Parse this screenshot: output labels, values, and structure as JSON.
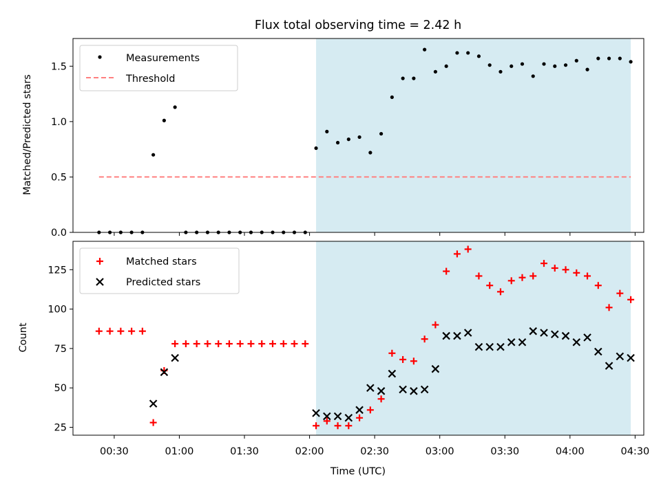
{
  "title": "Flux total observing time = 2.42 h",
  "colors": {
    "measurement": "#000000",
    "threshold": "#ff7f7f",
    "matched": "#ff0000",
    "predicted": "#000000",
    "shade": "#add8e6"
  },
  "chart_data": [
    {
      "type": "scatter",
      "ylabel": "Matched/Predicted stars",
      "ylim": [
        0,
        1.75
      ],
      "yticks": [
        "0.0",
        "0.5",
        "1.0",
        "1.5"
      ],
      "xlim": [
        "00:11",
        "04:34"
      ],
      "shaded_span": [
        "02:03",
        "04:28"
      ],
      "legend_position": "upper-left",
      "legend": [
        "Measurements",
        "Threshold"
      ],
      "threshold": 0.5,
      "threshold_x_range": [
        "00:23",
        "04:28"
      ],
      "series": [
        {
          "name": "Measurements",
          "x": [
            "00:23",
            "00:28",
            "00:33",
            "00:38",
            "00:43",
            "00:48",
            "00:53",
            "00:58",
            "01:03",
            "01:08",
            "01:13",
            "01:18",
            "01:23",
            "01:28",
            "01:33",
            "01:38",
            "01:43",
            "01:48",
            "01:53",
            "01:58",
            "02:03",
            "02:08",
            "02:13",
            "02:18",
            "02:23",
            "02:28",
            "02:33",
            "02:38",
            "02:43",
            "02:48",
            "02:53",
            "02:58",
            "03:03",
            "03:08",
            "03:13",
            "03:18",
            "03:23",
            "03:28",
            "03:33",
            "03:38",
            "03:43",
            "03:48",
            "03:53",
            "03:58",
            "04:03",
            "04:08",
            "04:13",
            "04:18",
            "04:23",
            "04:28"
          ],
          "y": [
            0,
            0,
            0,
            0,
            0,
            0.7,
            1.01,
            1.13,
            0,
            0,
            0,
            0,
            0,
            0,
            0,
            0,
            0,
            0,
            0,
            0,
            0.76,
            0.91,
            0.81,
            0.84,
            0.86,
            0.72,
            0.89,
            1.22,
            1.39,
            1.39,
            1.65,
            1.45,
            1.5,
            1.62,
            1.62,
            1.59,
            1.51,
            1.45,
            1.5,
            1.52,
            1.41,
            1.52,
            1.5,
            1.51,
            1.55,
            1.47,
            1.57,
            1.57,
            1.57,
            1.54
          ]
        }
      ]
    },
    {
      "type": "scatter",
      "ylabel": "Count",
      "xlabel": "Time (UTC)",
      "ylim": [
        20,
        143
      ],
      "yticks": [
        "25",
        "50",
        "75",
        "100",
        "125"
      ],
      "xlim": [
        "00:11",
        "04:34"
      ],
      "xticks": [
        "00:30",
        "01:00",
        "01:30",
        "02:00",
        "02:30",
        "03:00",
        "03:30",
        "04:00",
        "04:30"
      ],
      "shaded_span": [
        "02:03",
        "04:28"
      ],
      "legend_position": "upper-left",
      "legend": [
        "Matched stars",
        "Predicted stars"
      ],
      "series": [
        {
          "name": "Matched stars",
          "x": [
            "00:23",
            "00:28",
            "00:33",
            "00:38",
            "00:43",
            "00:48",
            "00:53",
            "00:58",
            "01:03",
            "01:08",
            "01:13",
            "01:18",
            "01:23",
            "01:28",
            "01:33",
            "01:38",
            "01:43",
            "01:48",
            "01:53",
            "01:58",
            "02:03",
            "02:08",
            "02:13",
            "02:18",
            "02:23",
            "02:28",
            "02:33",
            "02:38",
            "02:43",
            "02:48",
            "02:53",
            "02:58",
            "03:03",
            "03:08",
            "03:13",
            "03:18",
            "03:23",
            "03:28",
            "03:33",
            "03:38",
            "03:43",
            "03:48",
            "03:53",
            "03:58",
            "04:03",
            "04:08",
            "04:13",
            "04:18",
            "04:23",
            "04:28"
          ],
          "y": [
            86,
            86,
            86,
            86,
            86,
            28,
            61,
            78,
            78,
            78,
            78,
            78,
            78,
            78,
            78,
            78,
            78,
            78,
            78,
            78,
            26,
            29,
            26,
            26,
            31,
            36,
            43,
            72,
            68,
            67,
            81,
            90,
            124,
            135,
            138,
            121,
            115,
            111,
            118,
            120,
            121,
            129,
            126,
            125,
            123,
            121,
            115,
            101,
            110,
            106
          ]
        },
        {
          "name": "Predicted stars",
          "x": [
            "00:48",
            "00:53",
            "00:58",
            "02:03",
            "02:08",
            "02:13",
            "02:18",
            "02:23",
            "02:28",
            "02:33",
            "02:38",
            "02:43",
            "02:48",
            "02:53",
            "02:58",
            "03:03",
            "03:08",
            "03:13",
            "03:18",
            "03:23",
            "03:28",
            "03:33",
            "03:38",
            "03:43",
            "03:48",
            "03:53",
            "03:58",
            "04:03",
            "04:08",
            "04:13",
            "04:18",
            "04:23",
            "04:28"
          ],
          "y": [
            40,
            60,
            69,
            34,
            32,
            32,
            31,
            36,
            50,
            48,
            59,
            49,
            48,
            49,
            62,
            83,
            83,
            85,
            76,
            76,
            76,
            79,
            79,
            86,
            85,
            84,
            83,
            79,
            82,
            73,
            64,
            70,
            69
          ]
        }
      ]
    }
  ]
}
